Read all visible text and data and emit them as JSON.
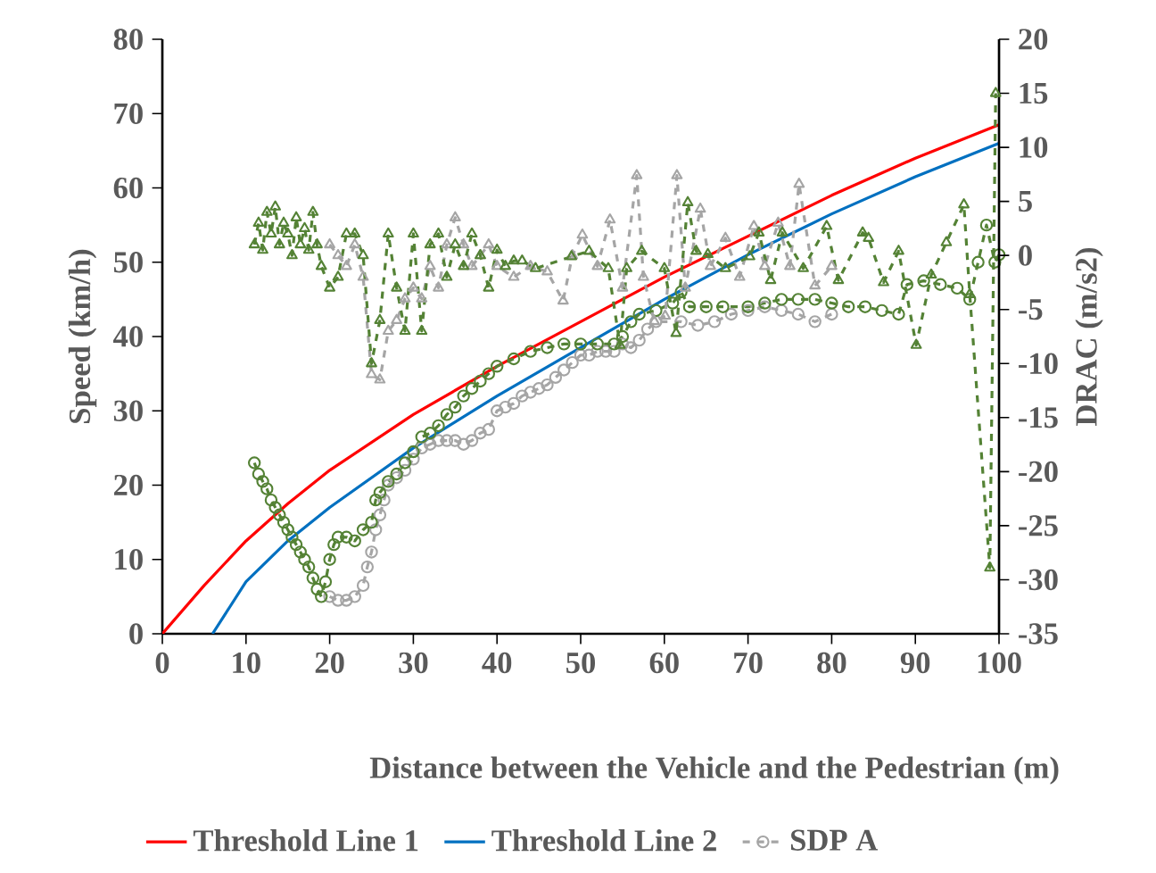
{
  "chart_data": {
    "type": "line",
    "xlabel": "Distance between the Vehicle and the Pedestrian (m)",
    "ylabel": "Speed (km/h)",
    "y2label": "DRAC (m/s2)",
    "xlim": [
      0,
      100
    ],
    "xticks": [
      0,
      10,
      20,
      30,
      40,
      50,
      60,
      70,
      80,
      90,
      100
    ],
    "ylim": [
      0,
      80
    ],
    "yticks": [
      0,
      10,
      20,
      30,
      40,
      50,
      60,
      70,
      80
    ],
    "y2lim": [
      -35,
      20
    ],
    "y2ticks": [
      -35,
      -30,
      -25,
      -20,
      -15,
      -10,
      -5,
      0,
      5,
      10,
      15,
      20
    ],
    "legend": "bottom",
    "grid": false,
    "series": [
      {
        "name": "Threshold Line 1",
        "color": "#ff0000",
        "marker": "none",
        "line_style": "solid",
        "x": [
          0,
          5,
          10,
          15,
          20,
          30,
          40,
          50,
          60,
          70,
          80,
          90,
          100
        ],
        "values": [
          0,
          6.5,
          12.5,
          17.5,
          22,
          29.5,
          36,
          42,
          48,
          53.5,
          59,
          64,
          68.5
        ]
      },
      {
        "name": "Threshold Line 2",
        "color": "#0070c0",
        "marker": "none",
        "line_style": "solid",
        "x": [
          6,
          10,
          15,
          20,
          30,
          40,
          50,
          60,
          70,
          80,
          90,
          100
        ],
        "values": [
          0,
          7,
          12.5,
          17,
          25,
          32,
          38.5,
          45,
          51,
          56.5,
          61.5,
          66
        ]
      },
      {
        "name": "SDP A",
        "color": "#a5a5a5",
        "marker": "circle",
        "line_style": "dashed",
        "x": [
          20,
          21,
          22,
          23,
          24,
          24.5,
          25,
          25.5,
          26,
          26.5,
          27,
          28,
          29,
          30,
          31,
          32,
          33,
          34,
          35,
          36,
          37,
          38,
          39,
          40,
          41,
          42,
          43,
          44,
          45,
          46,
          47,
          48,
          49,
          50,
          51,
          52,
          53,
          54,
          55,
          56,
          57,
          58,
          59,
          60,
          62,
          64,
          66,
          68,
          70,
          72,
          74,
          76,
          78,
          80
        ],
        "values": [
          5,
          4.5,
          4.5,
          5,
          6.5,
          9,
          11,
          14,
          16,
          18,
          20,
          21,
          22,
          23.5,
          25,
          25.5,
          26,
          26,
          26,
          25.5,
          26,
          27,
          27.5,
          30,
          30.5,
          31,
          32,
          32.5,
          33,
          33.5,
          34.5,
          35.5,
          36.5,
          37.5,
          37.5,
          38,
          38,
          38,
          39,
          38.5,
          39.5,
          41,
          42,
          null,
          42,
          41.5,
          42,
          43,
          43.5,
          44,
          43.5,
          43,
          42,
          43
        ]
      },
      {
        "color": "#548235",
        "marker": "circle",
        "line_style": "dashed",
        "x": [
          11,
          11.5,
          12,
          12.5,
          13,
          13.5,
          14,
          14.5,
          15,
          15.5,
          16,
          16.5,
          17,
          17.5,
          18,
          18.5,
          19,
          19.5,
          20,
          20.5,
          21,
          22,
          23,
          24,
          25,
          25.5,
          26,
          27,
          28,
          29,
          30,
          31,
          32,
          33,
          34,
          35,
          36,
          37,
          38,
          39,
          40,
          42,
          44,
          46,
          48,
          50,
          52,
          54,
          55,
          56,
          57,
          59,
          61,
          62,
          63,
          65,
          67,
          70,
          72,
          74,
          76,
          78,
          80,
          82,
          84,
          86,
          88,
          89,
          91,
          93,
          95,
          96.5,
          97.5,
          98.5,
          99.5,
          100
        ],
        "values": [
          23,
          21.5,
          20.5,
          19.5,
          18,
          17,
          16,
          15,
          14,
          13,
          12,
          11,
          10,
          9,
          7.5,
          6,
          5,
          7,
          10,
          12,
          13,
          13,
          12.5,
          14,
          15,
          18,
          19,
          20.5,
          21.5,
          23,
          24.5,
          26.5,
          27,
          28,
          29.5,
          30.5,
          32,
          33,
          34,
          35,
          36,
          37,
          38,
          38.5,
          39,
          39,
          39,
          39,
          40,
          42,
          43,
          43.5,
          44.5,
          46,
          44,
          44,
          44,
          44,
          44.5,
          45,
          45,
          45,
          44.5,
          44,
          44,
          43.5,
          43,
          47,
          47.5,
          47,
          46.5,
          45,
          50,
          55,
          50,
          51
        ]
      },
      {
        "color": "#a5a5a5",
        "marker": "triangle",
        "line_style": "dashed",
        "axis": "y2",
        "x": [
          20,
          21,
          22,
          23,
          24,
          25,
          26,
          27,
          28,
          29,
          30,
          31,
          32,
          33,
          34,
          35,
          36,
          37,
          38,
          39,
          40,
          42,
          44,
          46,
          47.9,
          49,
          50.2,
          52,
          53.5,
          55,
          56.7,
          57.5,
          58.8,
          60.1,
          61.5,
          62.5,
          64.3,
          65.5,
          67.3,
          69,
          70.7,
          72,
          73.6,
          75,
          76.1,
          78,
          80
        ],
        "values": [
          1,
          0,
          -1,
          1,
          -2,
          -11,
          -11.5,
          -7,
          -6,
          -4,
          -3,
          -4,
          -1,
          -3,
          1,
          3.5,
          1,
          -1,
          0,
          1,
          -1,
          -2,
          -1,
          -1.5,
          -4.2,
          0,
          1.9,
          -1,
          3.3,
          -3,
          7.4,
          -2,
          -6.1,
          -5.6,
          7.4,
          -3,
          4.3,
          -1,
          1.6,
          -2,
          2.7,
          -1,
          3,
          -1,
          6.6,
          -2.8,
          -1
        ]
      },
      {
        "color": "#548235",
        "marker": "triangle",
        "line_style": "dashed",
        "axis": "y2",
        "x": [
          11,
          11.5,
          12,
          12.5,
          13,
          13.5,
          14,
          14.5,
          15,
          15.5,
          16,
          16.5,
          17,
          17.5,
          18,
          18.5,
          19,
          20,
          21,
          22,
          23,
          24,
          25,
          26,
          27,
          28,
          29,
          30,
          31,
          32,
          33,
          34,
          35,
          36,
          37,
          38,
          39,
          40,
          41,
          42,
          43,
          44.6,
          48.9,
          51,
          53.3,
          54.7,
          55.5,
          57.3,
          60,
          61.4,
          62.8,
          63.8,
          65.2,
          67.3,
          70.2,
          71.3,
          72.7,
          74.1,
          76.6,
          79.4,
          80.8,
          83.7,
          84.4,
          86.2,
          88,
          90.1,
          91.9,
          93.7,
          95.8,
          96.5,
          98.9,
          99.6
        ],
        "values": [
          1,
          3,
          0.5,
          4,
          2,
          4.5,
          1,
          3,
          2,
          0,
          3.5,
          1,
          2.5,
          0.5,
          4,
          1,
          -1,
          -3,
          -2,
          2,
          2,
          0,
          -10,
          -6,
          2,
          -3,
          -7,
          2,
          -7,
          1,
          2,
          -2,
          1,
          -1,
          2,
          0,
          -3,
          0.5,
          -1,
          -0.5,
          -0.5,
          -1.2,
          -0.1,
          0.4,
          -1.2,
          -8.3,
          -1.2,
          0.4,
          -1.2,
          -7.2,
          4.9,
          0.4,
          0.1,
          -1.2,
          -0.1,
          2.1,
          -2.3,
          2.1,
          -1.2,
          2.7,
          -2.3,
          2.1,
          1.6,
          -2.5,
          0.4,
          -8.3,
          -1.8,
          1.2,
          4.7,
          -3.6,
          -28.9,
          15
        ]
      }
    ]
  }
}
